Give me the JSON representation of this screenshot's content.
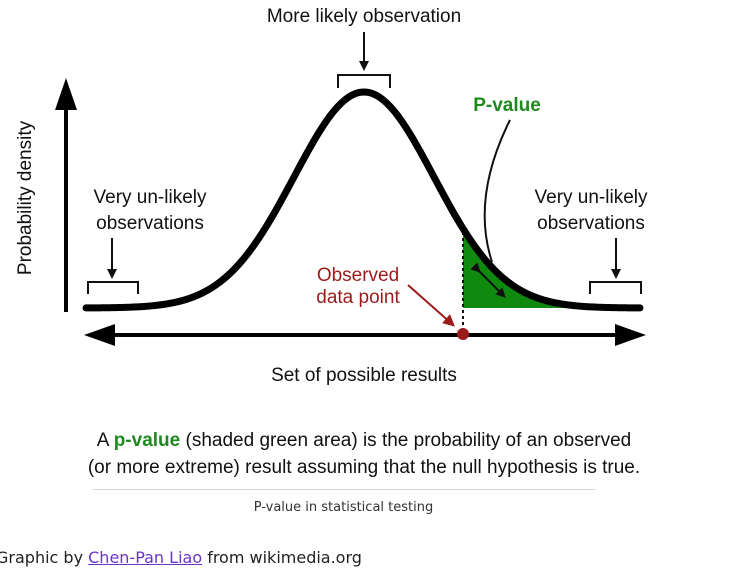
{
  "diagram": {
    "top_label": "More likely observation",
    "pvalue_label": "P-value",
    "left_label_line1": "Very un-likely",
    "left_label_line2": "observations",
    "right_label_line1": "Very un-likely",
    "right_label_line2": "observations",
    "observed_line1": "Observed",
    "observed_line2": "data point",
    "y_axis_label": "Probability density",
    "x_axis_label": "Set of possible results",
    "explanation_prefix": "A ",
    "explanation_term": "p-value",
    "explanation_rest_line1": " (shaded green area) is the probability of an observed",
    "explanation_line2": "(or more extreme) result assuming that the null hypothesis is true.",
    "colors": {
      "pvalue_green": "#1e8a1e",
      "area_green": "#0f8a0f",
      "observed_red": "#9b1b1b",
      "curve": "#000000"
    }
  },
  "caption": "P-value in statistical testing",
  "credit": {
    "prefix": "Graphic by ",
    "link_text": "Chen-Pan Liao",
    "suffix": " from wikimedia.org"
  }
}
